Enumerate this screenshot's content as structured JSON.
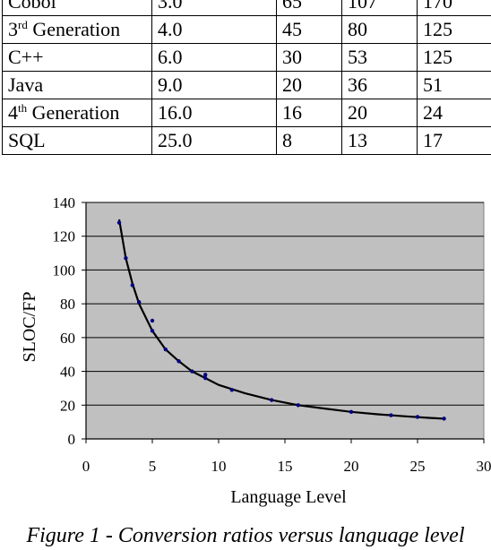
{
  "table": {
    "rows": [
      {
        "language": "Cobol",
        "level": "3.0",
        "c1": "65",
        "c2": "107",
        "c3": "170"
      },
      {
        "language": "3",
        "sup": "rd",
        "suffix": " Generation",
        "level": "4.0",
        "c1": "45",
        "c2": "80",
        "c3": "125"
      },
      {
        "language": "C++",
        "level": "6.0",
        "c1": "30",
        "c2": "53",
        "c3": "125"
      },
      {
        "language": "Java",
        "level": "9.0",
        "c1": "20",
        "c2": "36",
        "c3": "51"
      },
      {
        "language": "4",
        "sup": "th",
        "suffix": " Generation",
        "level": "16.0",
        "c1": "16",
        "c2": "20",
        "c3": "24"
      },
      {
        "language": "SQL",
        "level": "25.0",
        "c1": "8",
        "c2": "13",
        "c3": "17"
      }
    ]
  },
  "chart_data": {
    "type": "scatter",
    "xlabel": "Language Level",
    "ylabel": "SLOC/FP",
    "xlim": [
      0,
      30
    ],
    "ylim": [
      0,
      140
    ],
    "x_ticks": [
      0,
      5,
      10,
      15,
      20,
      25,
      30
    ],
    "y_ticks": [
      0,
      20,
      40,
      60,
      80,
      100,
      120,
      140
    ],
    "grid": "horizontal",
    "background_color": "#c0c0c0",
    "point_color": "#000080",
    "curve_color": "#000000",
    "points": [
      {
        "x": 2.5,
        "y": 128
      },
      {
        "x": 3.0,
        "y": 107
      },
      {
        "x": 3.5,
        "y": 91
      },
      {
        "x": 4.0,
        "y": 81
      },
      {
        "x": 5.0,
        "y": 70
      },
      {
        "x": 5.0,
        "y": 64
      },
      {
        "x": 6.0,
        "y": 53
      },
      {
        "x": 7.0,
        "y": 46
      },
      {
        "x": 8.0,
        "y": 40
      },
      {
        "x": 9.0,
        "y": 38
      },
      {
        "x": 9.0,
        "y": 36
      },
      {
        "x": 11.0,
        "y": 29
      },
      {
        "x": 14.0,
        "y": 23
      },
      {
        "x": 16.0,
        "y": 20
      },
      {
        "x": 20.0,
        "y": 16
      },
      {
        "x": 23.0,
        "y": 14
      },
      {
        "x": 25.0,
        "y": 13
      },
      {
        "x": 27.0,
        "y": 12
      }
    ],
    "trend_curve": [
      {
        "x": 2.5,
        "y": 130
      },
      {
        "x": 3,
        "y": 107
      },
      {
        "x": 3.5,
        "y": 92
      },
      {
        "x": 4,
        "y": 80
      },
      {
        "x": 5,
        "y": 64
      },
      {
        "x": 6,
        "y": 53
      },
      {
        "x": 7,
        "y": 46
      },
      {
        "x": 8,
        "y": 40
      },
      {
        "x": 9,
        "y": 36
      },
      {
        "x": 10,
        "y": 32
      },
      {
        "x": 12,
        "y": 27
      },
      {
        "x": 14,
        "y": 23
      },
      {
        "x": 16,
        "y": 20
      },
      {
        "x": 18,
        "y": 18
      },
      {
        "x": 20,
        "y": 16
      },
      {
        "x": 22,
        "y": 14.6
      },
      {
        "x": 24,
        "y": 13.4
      },
      {
        "x": 26,
        "y": 12.4
      },
      {
        "x": 27,
        "y": 12
      }
    ]
  },
  "caption": "Figure 1 - Conversion ratios versus language level"
}
